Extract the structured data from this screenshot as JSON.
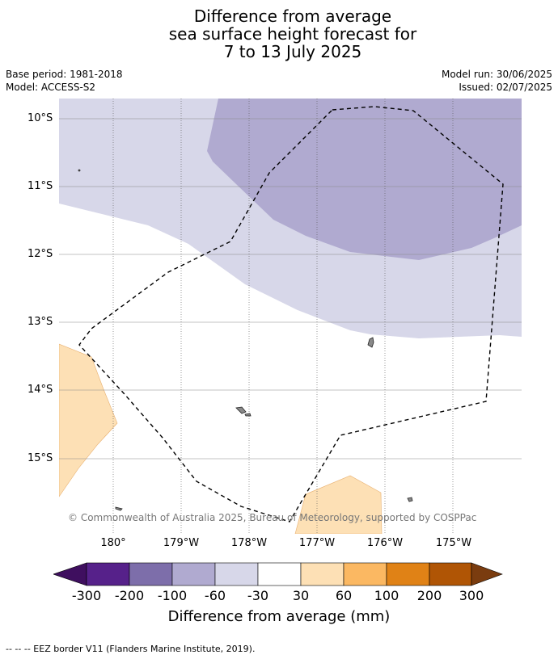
{
  "title": {
    "line1": "Difference from average",
    "line2": "sea surface height forecast for",
    "line3": "7 to 13 July 2025"
  },
  "meta": {
    "base_period": "Base period: 1981-2018",
    "model": "Model: ACCESS-S2",
    "model_run": "Model run: 30/06/2025",
    "issued": "Issued: 02/07/2025"
  },
  "map": {
    "lat_labels": [
      "10°S",
      "11°S",
      "12°S",
      "13°S",
      "14°S",
      "15°S"
    ],
    "lon_labels": [
      "180°",
      "179°W",
      "178°W",
      "177°W",
      "176°W",
      "175°W"
    ],
    "copyright": "© Commonwealth of Australia 2025, Bureau of Meteorology, supported by COSPPac"
  },
  "colorbar": {
    "ticks": [
      "-300",
      "-200",
      "-100",
      "-60",
      "-30",
      "30",
      "60",
      "100",
      "200",
      "300"
    ],
    "colors": [
      "#3f0f5f",
      "#56218a",
      "#7d6eaa",
      "#b0aad0",
      "#d7d7e9",
      "#ffffff",
      "#fde0b5",
      "#fbb862",
      "#e08216",
      "#b05505",
      "#7a3c0f"
    ],
    "label": "Difference from average (mm)"
  },
  "footer": {
    "legend_text": "--  --  -- EEZ border V11 (Flanders Marine Institute, 2019)."
  }
}
